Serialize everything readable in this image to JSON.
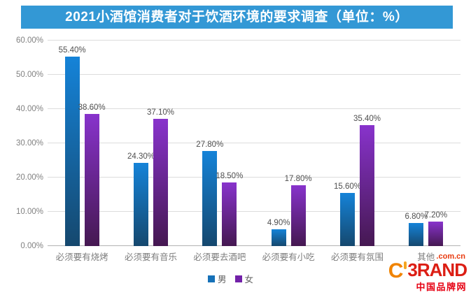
{
  "title": "2021小酒馆消费者对于饮酒环境的要求调查（单位：%）",
  "colors": {
    "title_bg": "#3398d5",
    "male_top": "#1583d8",
    "male_bottom": "#15486e",
    "female_top": "#8833cc",
    "female_bottom": "#451851",
    "legend_male": "#1671b8",
    "legend_female": "#7221a8",
    "logo_orange": "#f08300",
    "logo_red": "#e60012"
  },
  "chart_data": {
    "type": "bar",
    "title": "2021小酒馆消费者对于饮酒环境的要求调查（单位：%）",
    "categories": [
      "必须要有烧烤",
      "必须要有音乐",
      "必须要去酒吧",
      "必须要有小吃",
      "必须要有氛围",
      "其他"
    ],
    "series": [
      {
        "name": "男",
        "values": [
          55.4,
          24.3,
          27.8,
          4.9,
          15.6,
          6.8
        ]
      },
      {
        "name": "女",
        "values": [
          38.6,
          37.1,
          18.5,
          17.8,
          35.4,
          7.2
        ]
      }
    ],
    "value_labels": [
      [
        "55.40%",
        "24.30%",
        "27.80%",
        "4.90%",
        "15.60%",
        "6.80%"
      ],
      [
        "38.60%",
        "37.10%",
        "18.50%",
        "17.80%",
        "35.40%",
        "7.20%"
      ]
    ],
    "xlabel": "",
    "ylabel": "",
    "ylim": [
      0,
      60
    ],
    "y_ticks": [
      "0.00%",
      "10.00%",
      "20.00%",
      "30.00%",
      "40.00%",
      "50.00%",
      "60.00%"
    ],
    "grid": true,
    "legend_position": "bottom"
  },
  "watermark": {
    "c": "C",
    "brand": "3RAND",
    "domain": ".com.cn",
    "cn": "中国品牌网"
  }
}
